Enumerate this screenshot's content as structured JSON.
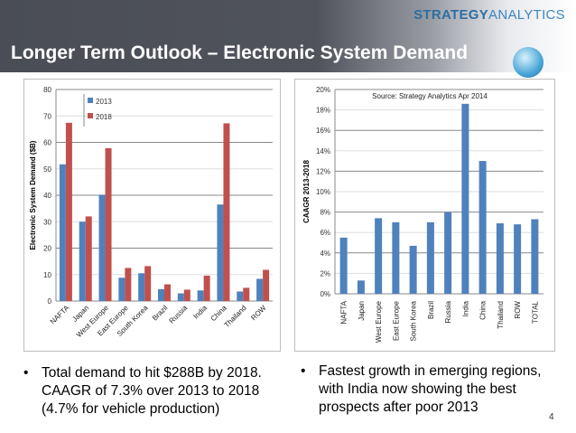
{
  "header": {
    "brand_strong": "STRATEGY",
    "brand_light": "ANALYTICS",
    "title": "Longer Term Outlook – Electronic System Demand"
  },
  "chart_data": [
    {
      "type": "bar",
      "ylabel": "Electronic System Demand ($B)",
      "ylim": [
        0,
        80
      ],
      "yticks": [
        0,
        10,
        20,
        30,
        40,
        50,
        60,
        70,
        80
      ],
      "grid": true,
      "legend": "top-left",
      "categories": [
        "NAFTA",
        "Japan",
        "West Europe",
        "East Europe",
        "South Korea",
        "Brazil",
        "Russia",
        "India",
        "China",
        "Thailand",
        "ROW"
      ],
      "series": [
        {
          "name": "2013",
          "color": "#4f81bd",
          "values": [
            51.7,
            30,
            40.2,
            8.8,
            10.5,
            4.5,
            2.9,
            4.0,
            36.5,
            3.6,
            8.4
          ]
        },
        {
          "name": "2018",
          "color": "#c0504d",
          "values": [
            67.4,
            32,
            57.8,
            12.5,
            13.2,
            6.3,
            4.3,
            9.6,
            67.2,
            5.0,
            11.8
          ]
        }
      ]
    },
    {
      "type": "bar",
      "ylabel": "CAAGR 2013-2018",
      "annotation": "Source: Strategy Analytics Apr 2014",
      "ylim": [
        0,
        20
      ],
      "yticks": [
        "0%",
        "2%",
        "4%",
        "6%",
        "8%",
        "10%",
        "12%",
        "14%",
        "16%",
        "18%",
        "20%"
      ],
      "grid": true,
      "categories": [
        "NAFTA",
        "Japan",
        "West Europe",
        "East Europe",
        "South Korea",
        "Brazil",
        "Russia",
        "India",
        "China",
        "Thailand",
        "ROW",
        "TOTAL"
      ],
      "series": [
        {
          "color": "#4f81bd",
          "values": [
            5.5,
            1.3,
            7.4,
            7.0,
            4.7,
            7.0,
            8.0,
            18.6,
            13.0,
            6.9,
            6.8,
            7.3
          ]
        }
      ]
    }
  ],
  "bullets": [
    "Total demand to hit $288B by 2018. CAAGR of 7.3% over 2013 to 2018 (4.7% for vehicle production)",
    "Fastest growth in emerging regions, with India now showing the best prospects after poor 2013"
  ],
  "page_number": "4"
}
